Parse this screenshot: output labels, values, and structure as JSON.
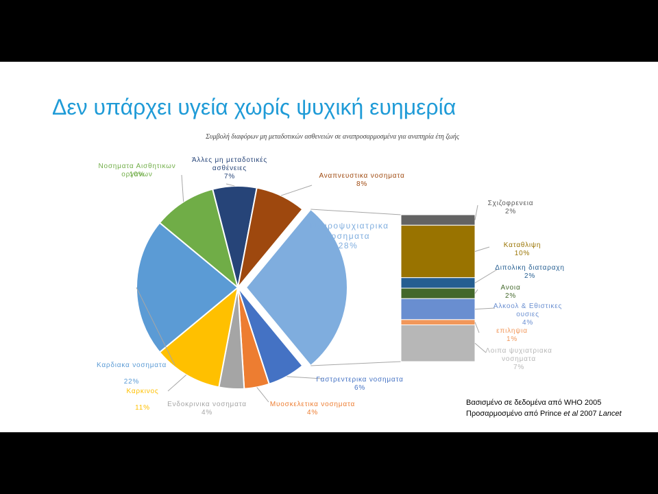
{
  "slide_title": "Δεν υπάρχει υγεία χωρίς ψυχική ευημερία",
  "chart_data": [
    {
      "type": "pie",
      "subtitle": "Συμβολή διαφόρων μη μεταδοτικών ασθενειών σε αναπροσαρμοσμένα για αναπηρία έτη ζωής",
      "categories": [
        "Νευροψυχιατρικα νοσηματα",
        "Γαστρεντερικα νοσηματα",
        "Μυοσκελετικα νοσηματα",
        "Ενδοκρινικα νοσηματα",
        "Καρκινος",
        "Καρδιακα νοσηματα",
        "Νοσηματα Αισθητικων οργανων",
        "Άλλες μη μεταδοτικές ασθένειες",
        "Αναπνευστικα νοσηματα"
      ],
      "values": [
        28,
        6,
        4,
        4,
        11,
        22,
        10,
        7,
        8
      ],
      "value_labels": [
        "28%",
        "6%",
        "4%",
        "4%",
        "11%",
        "22%",
        "10%",
        "7%",
        "8%"
      ],
      "colors": [
        "#7fadde",
        "#4472c4",
        "#ed7d31",
        "#a5a5a5",
        "#ffc000",
        "#5b9bd5",
        "#70ad47",
        "#264478",
        "#9e480e"
      ]
    },
    {
      "type": "bar",
      "categories": [
        "Σχιζοφρενεια",
        "Καταθλιψη",
        "Διπολικη διαταραχη",
        "Ανοια",
        "Αλκοολ & Εθιστικες ουσιες",
        "επιληψια",
        "Λοιπα ψυχιατριακα νοσηματα"
      ],
      "values": [
        2,
        10,
        2,
        2,
        4,
        1,
        7
      ],
      "value_labels": [
        "2%",
        "10%",
        "2%",
        "2%",
        "4%",
        "1%",
        "7%"
      ],
      "colors": [
        "#636363",
        "#997300",
        "#255e91",
        "#43682b",
        "#698ed0",
        "#f1975a",
        "#b7b7b7"
      ]
    }
  ],
  "note": [
    "Βασισμένο σε δεδομένα από WHO 2005",
    [
      "Προσαρμοσμένο από Prince ",
      "et al",
      " 2007 ",
      "Lancet"
    ]
  ]
}
